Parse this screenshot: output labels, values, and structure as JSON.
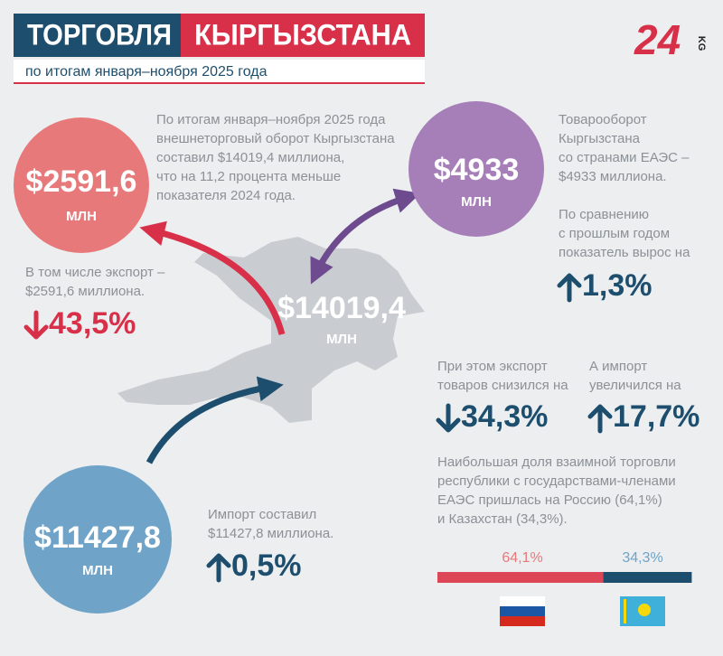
{
  "header": {
    "title_left": "ТОРГОВЛЯ",
    "title_right": "КЫРГЫЗСТАНА",
    "subtitle": "по итогам января–ноября 2025 года"
  },
  "logo": {
    "number": "24",
    "suffix": "KG"
  },
  "total": {
    "amount": "$14019,4",
    "unit": "МЛН",
    "text": [
      "По итогам января–ноября 2025 года",
      "внешнеторговый оборот Кыргызстана",
      "составил $14019,4 миллиона,",
      "что на 11,2 процента меньше",
      "показателя 2024 года."
    ]
  },
  "export": {
    "amount": "$2591,6",
    "unit": "МЛН",
    "text": [
      "В том числе экспорт –",
      "$2591,6 миллиона."
    ],
    "change": "43,5%"
  },
  "import": {
    "amount": "$11427,8",
    "unit": "МЛН",
    "text": [
      "Импорт составил",
      "$11427,8 миллиона."
    ],
    "change": "0,5%"
  },
  "eaeu": {
    "amount": "$4933",
    "unit": "МЛН",
    "text": [
      "Товарооборот",
      "Кыргызстана",
      "со странами ЕАЭС –",
      "$4933 миллиона."
    ],
    "growth_text": [
      "По сравнению",
      "с прошлым годом",
      "показатель вырос на"
    ],
    "growth": "1,3%",
    "export_text": [
      "При этом экспорт",
      "товаров снизился на"
    ],
    "export_change": "34,3%",
    "import_text": [
      "А импорт",
      "увеличился на"
    ],
    "import_change": "17,7%"
  },
  "shares": {
    "text": [
      "Наибольшая доля взаимной торговли",
      "республики с государствами-членами",
      "ЕАЭС пришлась на Россию (64,1%)",
      "и Казахстан (34,3%)."
    ],
    "items": [
      {
        "label": "64,1%",
        "value": 64.1,
        "color": "#dd4656"
      },
      {
        "label": "34,3%",
        "value": 34.3,
        "color": "#1d4e6e"
      }
    ]
  }
}
